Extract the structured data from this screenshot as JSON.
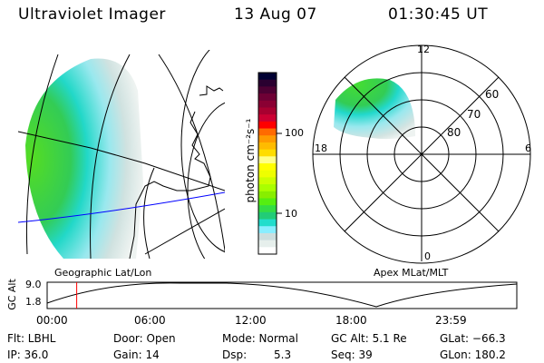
{
  "header": {
    "instrument": "Ultraviolet Imager",
    "date": "13 Aug 07",
    "time": "01:30:45 UT"
  },
  "colorbar": {
    "label": "photon cm⁻²s⁻¹",
    "ticks": [
      "100",
      "10"
    ],
    "colors": [
      "#000033",
      "#2a0030",
      "#4d0033",
      "#6e0035",
      "#8a0033",
      "#a80030",
      "#cc0033",
      "#ff0000",
      "#ff6a00",
      "#ff9a00",
      "#ffbb00",
      "#ffdd00",
      "#ffff88",
      "#ffff00",
      "#eeff00",
      "#ccff00",
      "#aaff00",
      "#88ee00",
      "#55ee11",
      "#33dd44",
      "#22cc77",
      "#22ddcc",
      "#88eeff",
      "#ccdede",
      "#e6efec",
      "#ffffff"
    ]
  },
  "maps": {
    "left_label": "Geographic Lat/Lon",
    "right_label": "Apex MLat/MLT",
    "polar_hours": {
      "top": "12",
      "left": "18",
      "right": "6",
      "bottom": "0"
    },
    "polar_lat_labels": [
      "60",
      "70",
      "80"
    ]
  },
  "altitude_plot": {
    "ylabel": "GC Alt",
    "yticks": [
      "9.0",
      "1.8"
    ],
    "xticks": [
      "00:00",
      "06:00",
      "12:00",
      "18:00",
      "23:59"
    ],
    "current_time_hours": 1.51,
    "marker_color": "#ff0000"
  },
  "status": {
    "filter": "Flt: LBHL",
    "ip": "IP: 36.0",
    "door": "Door: Open",
    "gain": "Gain: 14",
    "mode": "Mode: Normal",
    "dsp_label": "Dsp:",
    "dsp_value": "5.3",
    "gc_alt": "GC Alt: 5.1 Re",
    "seq": "Seq: 39",
    "glat": "GLat: −66.3",
    "glon": "GLon: 180.2"
  }
}
